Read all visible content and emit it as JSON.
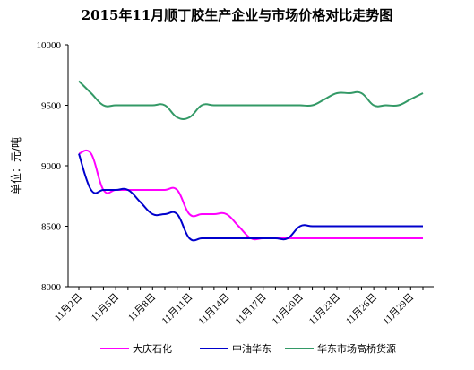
{
  "chart_data": {
    "type": "line",
    "title": "2015年11月顺丁胶生产企业与市场价格对比走势图",
    "ylabel": "单位：元/吨",
    "xlabel": "",
    "ylim": [
      8000,
      10000
    ],
    "yticks": [
      8000,
      8500,
      9000,
      9500,
      10000
    ],
    "x": [
      "11月2日",
      "11月3日",
      "11月4日",
      "11月5日",
      "11月6日",
      "11月7日",
      "11月8日",
      "11月9日",
      "11月10日",
      "11月11日",
      "11月12日",
      "11月13日",
      "11月14日",
      "11月15日",
      "11月16日",
      "11月17日",
      "11月18日",
      "11月19日",
      "11月20日",
      "11月21日",
      "11月22日",
      "11月23日",
      "11月24日",
      "11月25日",
      "11月26日",
      "11月27日",
      "11月28日",
      "11月29日",
      "11月30日"
    ],
    "xtick_labels": [
      "11月2日",
      "11月5日",
      "11月8日",
      "11月11日",
      "11月14日",
      "11月17日",
      "11月20日",
      "11月23日",
      "11月26日",
      "11月29日"
    ],
    "grid": false,
    "legend_position": "bottom",
    "series": [
      {
        "name": "大庆石化",
        "color": "#ff00ff",
        "values": [
          9100,
          9100,
          8800,
          8800,
          8800,
          8800,
          8800,
          8800,
          8800,
          8600,
          8600,
          8600,
          8600,
          8500,
          8400,
          8400,
          8400,
          8400,
          8400,
          8400,
          8400,
          8400,
          8400,
          8400,
          8400,
          8400,
          8400,
          8400,
          8400
        ]
      },
      {
        "name": "中油华东",
        "color": "#0000cc",
        "values": [
          9100,
          8800,
          8800,
          8800,
          8800,
          8700,
          8600,
          8600,
          8600,
          8400,
          8400,
          8400,
          8400,
          8400,
          8400,
          8400,
          8400,
          8400,
          8500,
          8500,
          8500,
          8500,
          8500,
          8500,
          8500,
          8500,
          8500,
          8500,
          8500
        ]
      },
      {
        "name": "华东市场高桥货源",
        "color": "#339966",
        "values": [
          9700,
          9600,
          9500,
          9500,
          9500,
          9500,
          9500,
          9500,
          9400,
          9400,
          9500,
          9500,
          9500,
          9500,
          9500,
          9500,
          9500,
          9500,
          9500,
          9500,
          9550,
          9600,
          9600,
          9600,
          9500,
          9500,
          9500,
          9550,
          9600
        ]
      }
    ]
  }
}
